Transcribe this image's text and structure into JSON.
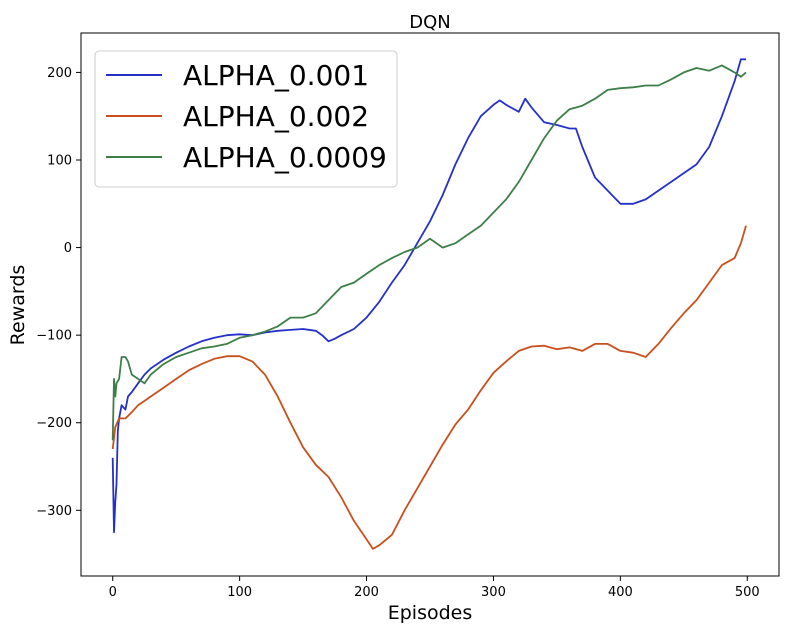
{
  "chart_data": {
    "type": "line",
    "title": "DQN",
    "xlabel": "Episodes",
    "ylabel": "Rewards",
    "xlim": [
      -25,
      525
    ],
    "ylim": [
      -375,
      245
    ],
    "xticks": [
      0,
      100,
      200,
      300,
      400,
      500
    ],
    "yticks": [
      -300,
      -200,
      -100,
      0,
      100,
      200
    ],
    "xtick_labels": [
      "0",
      "100",
      "200",
      "300",
      "400",
      "500"
    ],
    "ytick_labels": [
      "−300",
      "−200",
      "−100",
      "0",
      "100",
      "200"
    ],
    "grid": false,
    "legend_position": "top-left",
    "series": [
      {
        "name": "ALPHA_0.001",
        "color": "#2431c9",
        "points": [
          [
            0,
            -240
          ],
          [
            1,
            -325
          ],
          [
            2,
            -290
          ],
          [
            3,
            -270
          ],
          [
            4,
            -210
          ],
          [
            5,
            -195
          ],
          [
            7,
            -180
          ],
          [
            10,
            -185
          ],
          [
            12,
            -170
          ],
          [
            15,
            -165
          ],
          [
            20,
            -155
          ],
          [
            25,
            -145
          ],
          [
            30,
            -138
          ],
          [
            40,
            -128
          ],
          [
            50,
            -120
          ],
          [
            60,
            -113
          ],
          [
            70,
            -107
          ],
          [
            80,
            -103
          ],
          [
            90,
            -100
          ],
          [
            100,
            -99
          ],
          [
            110,
            -100
          ],
          [
            120,
            -97
          ],
          [
            130,
            -95
          ],
          [
            140,
            -94
          ],
          [
            150,
            -93
          ],
          [
            160,
            -95
          ],
          [
            165,
            -100
          ],
          [
            170,
            -107
          ],
          [
            175,
            -104
          ],
          [
            180,
            -100
          ],
          [
            190,
            -93
          ],
          [
            200,
            -80
          ],
          [
            210,
            -62
          ],
          [
            220,
            -40
          ],
          [
            230,
            -20
          ],
          [
            240,
            5
          ],
          [
            250,
            30
          ],
          [
            260,
            60
          ],
          [
            270,
            95
          ],
          [
            280,
            125
          ],
          [
            290,
            150
          ],
          [
            300,
            163
          ],
          [
            305,
            168
          ],
          [
            310,
            163
          ],
          [
            320,
            155
          ],
          [
            325,
            170
          ],
          [
            330,
            160
          ],
          [
            340,
            143
          ],
          [
            350,
            140
          ],
          [
            360,
            136
          ],
          [
            365,
            136
          ],
          [
            370,
            115
          ],
          [
            380,
            80
          ],
          [
            390,
            65
          ],
          [
            400,
            50
          ],
          [
            410,
            50
          ],
          [
            420,
            55
          ],
          [
            430,
            65
          ],
          [
            440,
            75
          ],
          [
            450,
            85
          ],
          [
            460,
            95
          ],
          [
            470,
            115
          ],
          [
            480,
            150
          ],
          [
            490,
            190
          ],
          [
            495,
            215
          ],
          [
            499,
            215
          ]
        ]
      },
      {
        "name": "ALPHA_0.002",
        "color": "#c9501c",
        "points": [
          [
            0,
            -230
          ],
          [
            2,
            -205
          ],
          [
            5,
            -195
          ],
          [
            10,
            -195
          ],
          [
            15,
            -188
          ],
          [
            20,
            -180
          ],
          [
            30,
            -170
          ],
          [
            40,
            -160
          ],
          [
            50,
            -150
          ],
          [
            60,
            -140
          ],
          [
            70,
            -133
          ],
          [
            80,
            -127
          ],
          [
            90,
            -124
          ],
          [
            100,
            -124
          ],
          [
            110,
            -130
          ],
          [
            120,
            -145
          ],
          [
            130,
            -170
          ],
          [
            140,
            -200
          ],
          [
            150,
            -228
          ],
          [
            160,
            -248
          ],
          [
            170,
            -262
          ],
          [
            180,
            -285
          ],
          [
            190,
            -312
          ],
          [
            200,
            -333
          ],
          [
            205,
            -344
          ],
          [
            210,
            -340
          ],
          [
            220,
            -328
          ],
          [
            230,
            -300
          ],
          [
            240,
            -275
          ],
          [
            250,
            -250
          ],
          [
            260,
            -225
          ],
          [
            270,
            -202
          ],
          [
            280,
            -185
          ],
          [
            290,
            -163
          ],
          [
            300,
            -143
          ],
          [
            310,
            -130
          ],
          [
            320,
            -118
          ],
          [
            330,
            -113
          ],
          [
            340,
            -112
          ],
          [
            350,
            -116
          ],
          [
            360,
            -114
          ],
          [
            370,
            -118
          ],
          [
            380,
            -110
          ],
          [
            390,
            -110
          ],
          [
            400,
            -118
          ],
          [
            410,
            -120
          ],
          [
            420,
            -125
          ],
          [
            430,
            -110
          ],
          [
            440,
            -92
          ],
          [
            450,
            -75
          ],
          [
            460,
            -60
          ],
          [
            470,
            -40
          ],
          [
            480,
            -20
          ],
          [
            490,
            -12
          ],
          [
            495,
            5
          ],
          [
            499,
            25
          ]
        ]
      },
      {
        "name": "ALPHA_0.0009",
        "color": "#3d7f48",
        "points": [
          [
            0,
            -220
          ],
          [
            1,
            -150
          ],
          [
            2,
            -170
          ],
          [
            3,
            -155
          ],
          [
            5,
            -150
          ],
          [
            7,
            -125
          ],
          [
            10,
            -125
          ],
          [
            12,
            -130
          ],
          [
            15,
            -145
          ],
          [
            20,
            -150
          ],
          [
            25,
            -155
          ],
          [
            30,
            -145
          ],
          [
            40,
            -133
          ],
          [
            50,
            -125
          ],
          [
            60,
            -120
          ],
          [
            70,
            -115
          ],
          [
            80,
            -113
          ],
          [
            90,
            -110
          ],
          [
            100,
            -103
          ],
          [
            110,
            -100
          ],
          [
            120,
            -96
          ],
          [
            130,
            -90
          ],
          [
            140,
            -80
          ],
          [
            150,
            -80
          ],
          [
            160,
            -75
          ],
          [
            170,
            -60
          ],
          [
            180,
            -45
          ],
          [
            190,
            -40
          ],
          [
            200,
            -30
          ],
          [
            210,
            -20
          ],
          [
            220,
            -12
          ],
          [
            230,
            -5
          ],
          [
            240,
            0
          ],
          [
            250,
            10
          ],
          [
            260,
            0
          ],
          [
            270,
            5
          ],
          [
            280,
            15
          ],
          [
            290,
            25
          ],
          [
            300,
            40
          ],
          [
            310,
            55
          ],
          [
            320,
            75
          ],
          [
            330,
            100
          ],
          [
            340,
            125
          ],
          [
            350,
            145
          ],
          [
            360,
            158
          ],
          [
            370,
            162
          ],
          [
            380,
            170
          ],
          [
            390,
            180
          ],
          [
            400,
            182
          ],
          [
            410,
            183
          ],
          [
            420,
            185
          ],
          [
            430,
            185
          ],
          [
            440,
            192
          ],
          [
            450,
            200
          ],
          [
            460,
            205
          ],
          [
            470,
            202
          ],
          [
            480,
            208
          ],
          [
            490,
            200
          ],
          [
            495,
            195
          ],
          [
            499,
            200
          ]
        ]
      }
    ]
  }
}
